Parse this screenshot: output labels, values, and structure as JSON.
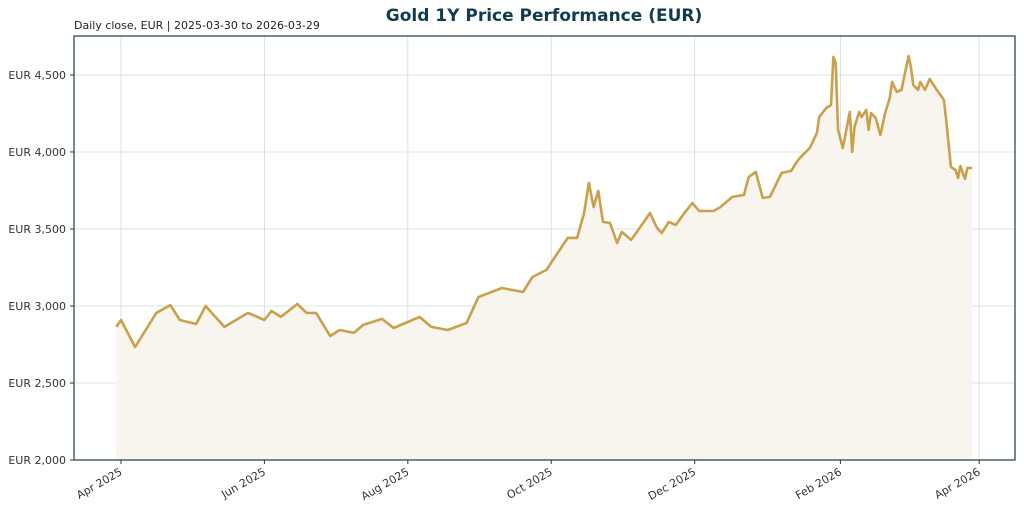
{
  "chart_data": {
    "type": "area",
    "title": "Gold 1Y Price Performance (EUR)",
    "subtitle": "Daily close, EUR | 2025-03-30 to 2026-03-29",
    "xlabel": "",
    "ylabel": "",
    "ylim": [
      2000,
      4753
    ],
    "grid": true,
    "colors": {
      "line": "#c9a04b",
      "fill": "#f8f5ee",
      "grid": "#c9dde3",
      "spine": "#1f3a48",
      "title": "#123b4f"
    },
    "y_ticks": [
      {
        "value": 2000,
        "label": "EUR 2,000"
      },
      {
        "value": 2500,
        "label": "EUR 2,500"
      },
      {
        "value": 3000,
        "label": "EUR 3,000"
      },
      {
        "value": 3500,
        "label": "EUR 3,500"
      },
      {
        "value": 4000,
        "label": "EUR 4,000"
      },
      {
        "value": 4500,
        "label": "EUR 4,500"
      }
    ],
    "x_ticks": [
      {
        "value": "2025-04-01",
        "label": "Apr 2025"
      },
      {
        "value": "2025-06-01",
        "label": "Jun 2025"
      },
      {
        "value": "2025-08-01",
        "label": "Aug 2025"
      },
      {
        "value": "2025-10-01",
        "label": "Oct 2025"
      },
      {
        "value": "2025-12-01",
        "label": "Dec 2025"
      },
      {
        "value": "2026-02-01",
        "label": "Feb 2026"
      },
      {
        "value": "2026-04-01",
        "label": "Apr 2026"
      }
    ],
    "series": [
      {
        "x": [
          "2025-03-30",
          "2025-04-01",
          "2025-04-07",
          "2025-04-16",
          "2025-04-22",
          "2025-04-26",
          "2025-05-03",
          "2025-05-07",
          "2025-05-15",
          "2025-05-25",
          "2025-06-01",
          "2025-06-04",
          "2025-06-08",
          "2025-06-15",
          "2025-06-19",
          "2025-06-23",
          "2025-06-29",
          "2025-07-03",
          "2025-07-09",
          "2025-07-13",
          "2025-07-21",
          "2025-07-26",
          "2025-08-01",
          "2025-08-06",
          "2025-08-11",
          "2025-08-18",
          "2025-08-26",
          "2025-08-31",
          "2025-09-10",
          "2025-09-19",
          "2025-09-23",
          "2025-09-29",
          "2025-10-02",
          "2025-10-08",
          "2025-10-12",
          "2025-10-15",
          "2025-10-17",
          "2025-10-19",
          "2025-10-21",
          "2025-10-23",
          "2025-10-26",
          "2025-10-29",
          "2025-10-31",
          "2025-11-04",
          "2025-11-10",
          "2025-11-12",
          "2025-11-15",
          "2025-11-17",
          "2025-11-20",
          "2025-11-23",
          "2025-11-26",
          "2025-11-30",
          "2025-12-03",
          "2025-12-09",
          "2025-12-12",
          "2025-12-17",
          "2025-12-22",
          "2025-12-24",
          "2025-12-27",
          "2025-12-30",
          "2026-01-02",
          "2026-01-07",
          "2026-01-11",
          "2026-01-14",
          "2026-01-16",
          "2026-01-19",
          "2026-01-22",
          "2026-01-23",
          "2026-01-26",
          "2026-01-28",
          "2026-01-29",
          "2026-01-30",
          "2026-01-31",
          "2026-02-02",
          "2026-02-05",
          "2026-02-06",
          "2026-02-07",
          "2026-02-09",
          "2026-02-10",
          "2026-02-12",
          "2026-02-13",
          "2026-02-14",
          "2026-02-16",
          "2026-02-18",
          "2026-02-20",
          "2026-02-22",
          "2026-02-23",
          "2026-02-25",
          "2026-02-27",
          "2026-03-02",
          "2026-03-03",
          "2026-03-04",
          "2026-03-06",
          "2026-03-07",
          "2026-03-09",
          "2026-03-11",
          "2026-03-14",
          "2026-03-17",
          "2026-03-18",
          "2026-03-20",
          "2026-03-22",
          "2026-03-23",
          "2026-03-24",
          "2026-03-26",
          "2026-03-27",
          "2026-03-29"
        ],
        "values": [
          2864,
          2909,
          2734,
          2955,
          3006,
          2909,
          2883,
          3000,
          2864,
          2955,
          2909,
          2968,
          2929,
          3013,
          2955,
          2955,
          2805,
          2844,
          2825,
          2877,
          2916,
          2857,
          2896,
          2929,
          2864,
          2844,
          2890,
          3058,
          3117,
          3091,
          3188,
          3234,
          3305,
          3442,
          3442,
          3604,
          3800,
          3643,
          3747,
          3546,
          3539,
          3409,
          3481,
          3429,
          3559,
          3604,
          3507,
          3474,
          3546,
          3526,
          3591,
          3669,
          3617,
          3617,
          3643,
          3708,
          3721,
          3838,
          3870,
          3701,
          3708,
          3864,
          3877,
          3948,
          3981,
          4026,
          4123,
          4227,
          4286,
          4305,
          4617,
          4578,
          4143,
          4026,
          4260,
          4000,
          4162,
          4260,
          4227,
          4273,
          4143,
          4253,
          4221,
          4110,
          4253,
          4351,
          4455,
          4390,
          4403,
          4623,
          4552,
          4435,
          4403,
          4455,
          4403,
          4474,
          4403,
          4338,
          4208,
          3903,
          3883,
          3831,
          3909,
          3825,
          3896,
          3896
        ]
      }
    ]
  }
}
